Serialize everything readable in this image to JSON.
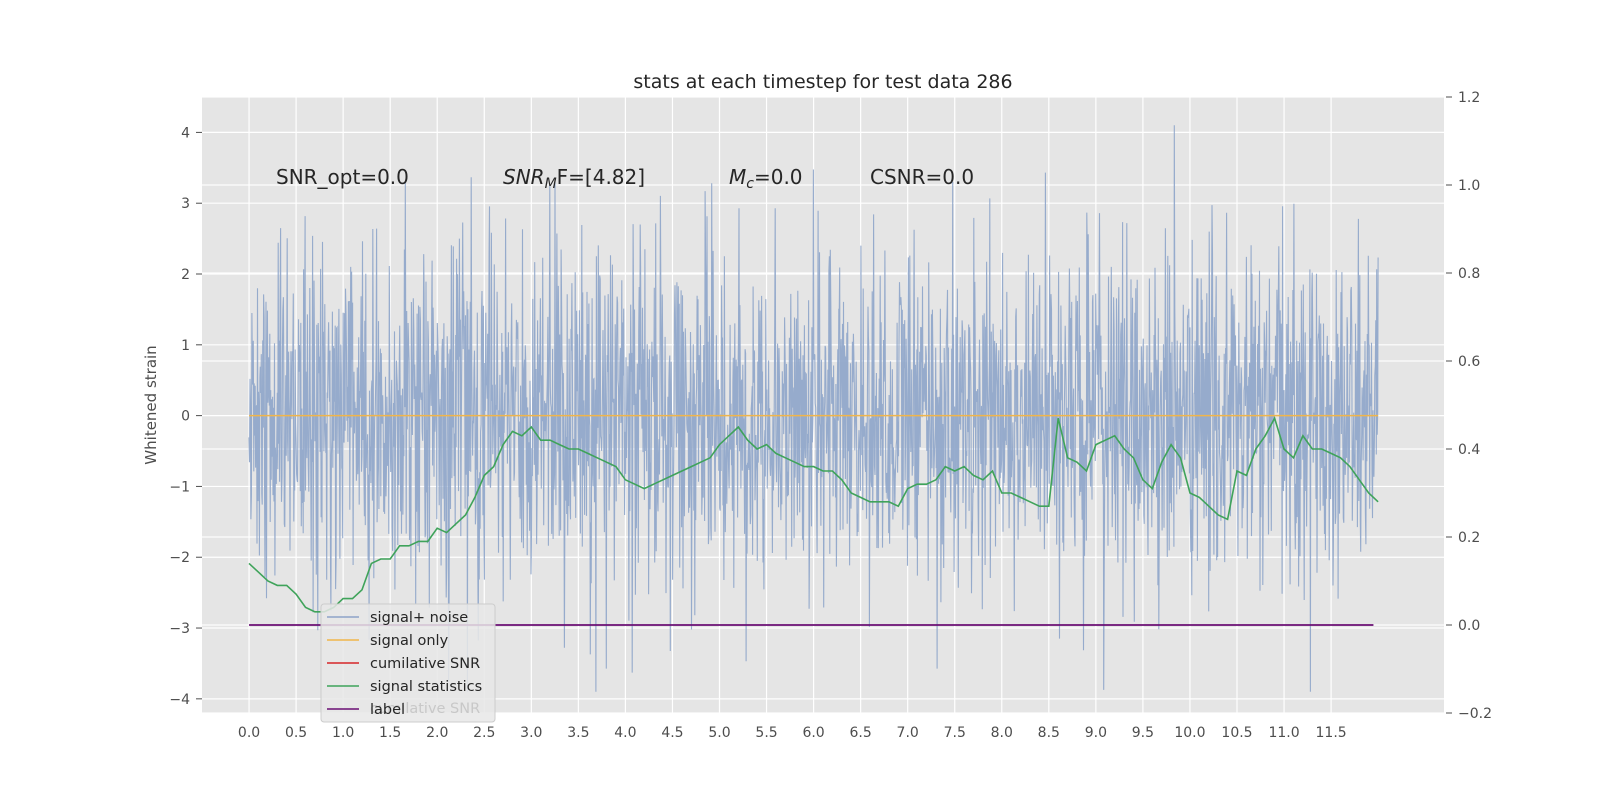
{
  "chart_data": {
    "type": "line",
    "title": "stats at each timestep for test data 286",
    "ylabel": "Whitened strain",
    "x_ticks": [
      "0.0",
      "0.5",
      "1.0",
      "1.5",
      "2.0",
      "2.5",
      "3.0",
      "3.5",
      "4.0",
      "4.5",
      "5.0",
      "5.5",
      "6.0",
      "6.5",
      "7.0",
      "7.5",
      "8.0",
      "8.5",
      "9.0",
      "9.5",
      "10.0",
      "10.5",
      "11.0",
      "11.5"
    ],
    "xlim": [
      -0.5,
      12.7
    ],
    "ylim": [
      -4.2,
      4.5
    ],
    "y_ticks": [
      "−4",
      "−3",
      "−2",
      "−1",
      "0",
      "1",
      "2",
      "3",
      "4"
    ],
    "y2lim": [
      -0.2,
      1.2
    ],
    "y2_ticks": [
      "−0.2",
      "0.0",
      "0.2",
      "0.4",
      "0.6",
      "0.8",
      "1.0",
      "1.2"
    ],
    "grid": true,
    "legend_position": "lower-left",
    "annotations": {
      "snr_opt": "SNR_opt=0.0",
      "snr_mf_main": "SNR",
      "snr_mf_sub": "M",
      "snr_mf_tail": "F=[4.82]",
      "mc_main": "M",
      "mc_sub": "c",
      "mc_tail": "=0.0",
      "csnr": "CSNR=0.0"
    },
    "series": [
      {
        "name": "signal+ noise",
        "color": "#8da4c9",
        "axis": "left",
        "noise_range": [
          -3.9,
          4.1
        ],
        "x_range": [
          0,
          12
        ]
      },
      {
        "name": "signal only",
        "color": "#f0b54a",
        "axis": "left",
        "x": [
          0,
          12
        ],
        "y": [
          0,
          0
        ]
      },
      {
        "name": "cumilative SNR",
        "color": "#d62728",
        "axis": "right",
        "x": [],
        "y": []
      },
      {
        "name": "signal statistics",
        "color": "#3fa35a",
        "axis": "right",
        "x": [
          0.0,
          0.1,
          0.2,
          0.3,
          0.4,
          0.5,
          0.6,
          0.7,
          0.8,
          0.9,
          1.0,
          1.1,
          1.2,
          1.3,
          1.4,
          1.5,
          1.6,
          1.7,
          1.8,
          1.9,
          2.0,
          2.1,
          2.2,
          2.3,
          2.4,
          2.5,
          2.6,
          2.7,
          2.8,
          2.9,
          3.0,
          3.1,
          3.2,
          3.3,
          3.4,
          3.5,
          3.6,
          3.7,
          3.8,
          3.9,
          4.0,
          4.1,
          4.2,
          4.3,
          4.4,
          4.5,
          4.6,
          4.7,
          4.8,
          4.9,
          5.0,
          5.1,
          5.2,
          5.3,
          5.4,
          5.5,
          5.6,
          5.7,
          5.8,
          5.9,
          6.0,
          6.1,
          6.2,
          6.3,
          6.4,
          6.5,
          6.6,
          6.7,
          6.8,
          6.9,
          7.0,
          7.1,
          7.2,
          7.3,
          7.4,
          7.5,
          7.6,
          7.7,
          7.8,
          7.9,
          8.0,
          8.1,
          8.2,
          8.3,
          8.4,
          8.5,
          8.6,
          8.7,
          8.8,
          8.9,
          9.0,
          9.1,
          9.2,
          9.3,
          9.4,
          9.5,
          9.6,
          9.7,
          9.8,
          9.9,
          10.0,
          10.1,
          10.2,
          10.3,
          10.4,
          10.5,
          10.6,
          10.7,
          10.8,
          10.9,
          11.0,
          11.1,
          11.2,
          11.3,
          11.4,
          11.5,
          11.6,
          11.7,
          11.8,
          11.9,
          12.0
        ],
        "y": [
          0.14,
          0.12,
          0.1,
          0.09,
          0.09,
          0.07,
          0.04,
          0.03,
          0.03,
          0.04,
          0.06,
          0.06,
          0.08,
          0.14,
          0.15,
          0.15,
          0.18,
          0.18,
          0.19,
          0.19,
          0.22,
          0.21,
          0.23,
          0.25,
          0.29,
          0.34,
          0.36,
          0.41,
          0.44,
          0.43,
          0.45,
          0.42,
          0.42,
          0.41,
          0.4,
          0.4,
          0.39,
          0.38,
          0.37,
          0.36,
          0.33,
          0.32,
          0.31,
          0.32,
          0.33,
          0.34,
          0.35,
          0.36,
          0.37,
          0.38,
          0.41,
          0.43,
          0.45,
          0.42,
          0.4,
          0.41,
          0.39,
          0.38,
          0.37,
          0.36,
          0.36,
          0.35,
          0.35,
          0.33,
          0.3,
          0.29,
          0.28,
          0.28,
          0.28,
          0.27,
          0.31,
          0.32,
          0.32,
          0.33,
          0.36,
          0.35,
          0.36,
          0.34,
          0.33,
          0.35,
          0.3,
          0.3,
          0.29,
          0.28,
          0.27,
          0.27,
          0.47,
          0.38,
          0.37,
          0.35,
          0.41,
          0.42,
          0.43,
          0.4,
          0.38,
          0.33,
          0.31,
          0.37,
          0.41,
          0.38,
          0.3,
          0.29,
          0.27,
          0.25,
          0.24,
          0.35,
          0.34,
          0.4,
          0.43,
          0.47,
          0.4,
          0.38,
          0.43,
          0.4,
          0.4,
          0.39,
          0.38,
          0.36,
          0.33,
          0.3,
          0.28
        ]
      },
      {
        "name": "label",
        "color": "#6a0f73",
        "axis": "right",
        "x": [
          0,
          11.95
        ],
        "y": [
          0,
          0
        ]
      }
    ],
    "legend_ghost_text": "cumilative SNR"
  }
}
